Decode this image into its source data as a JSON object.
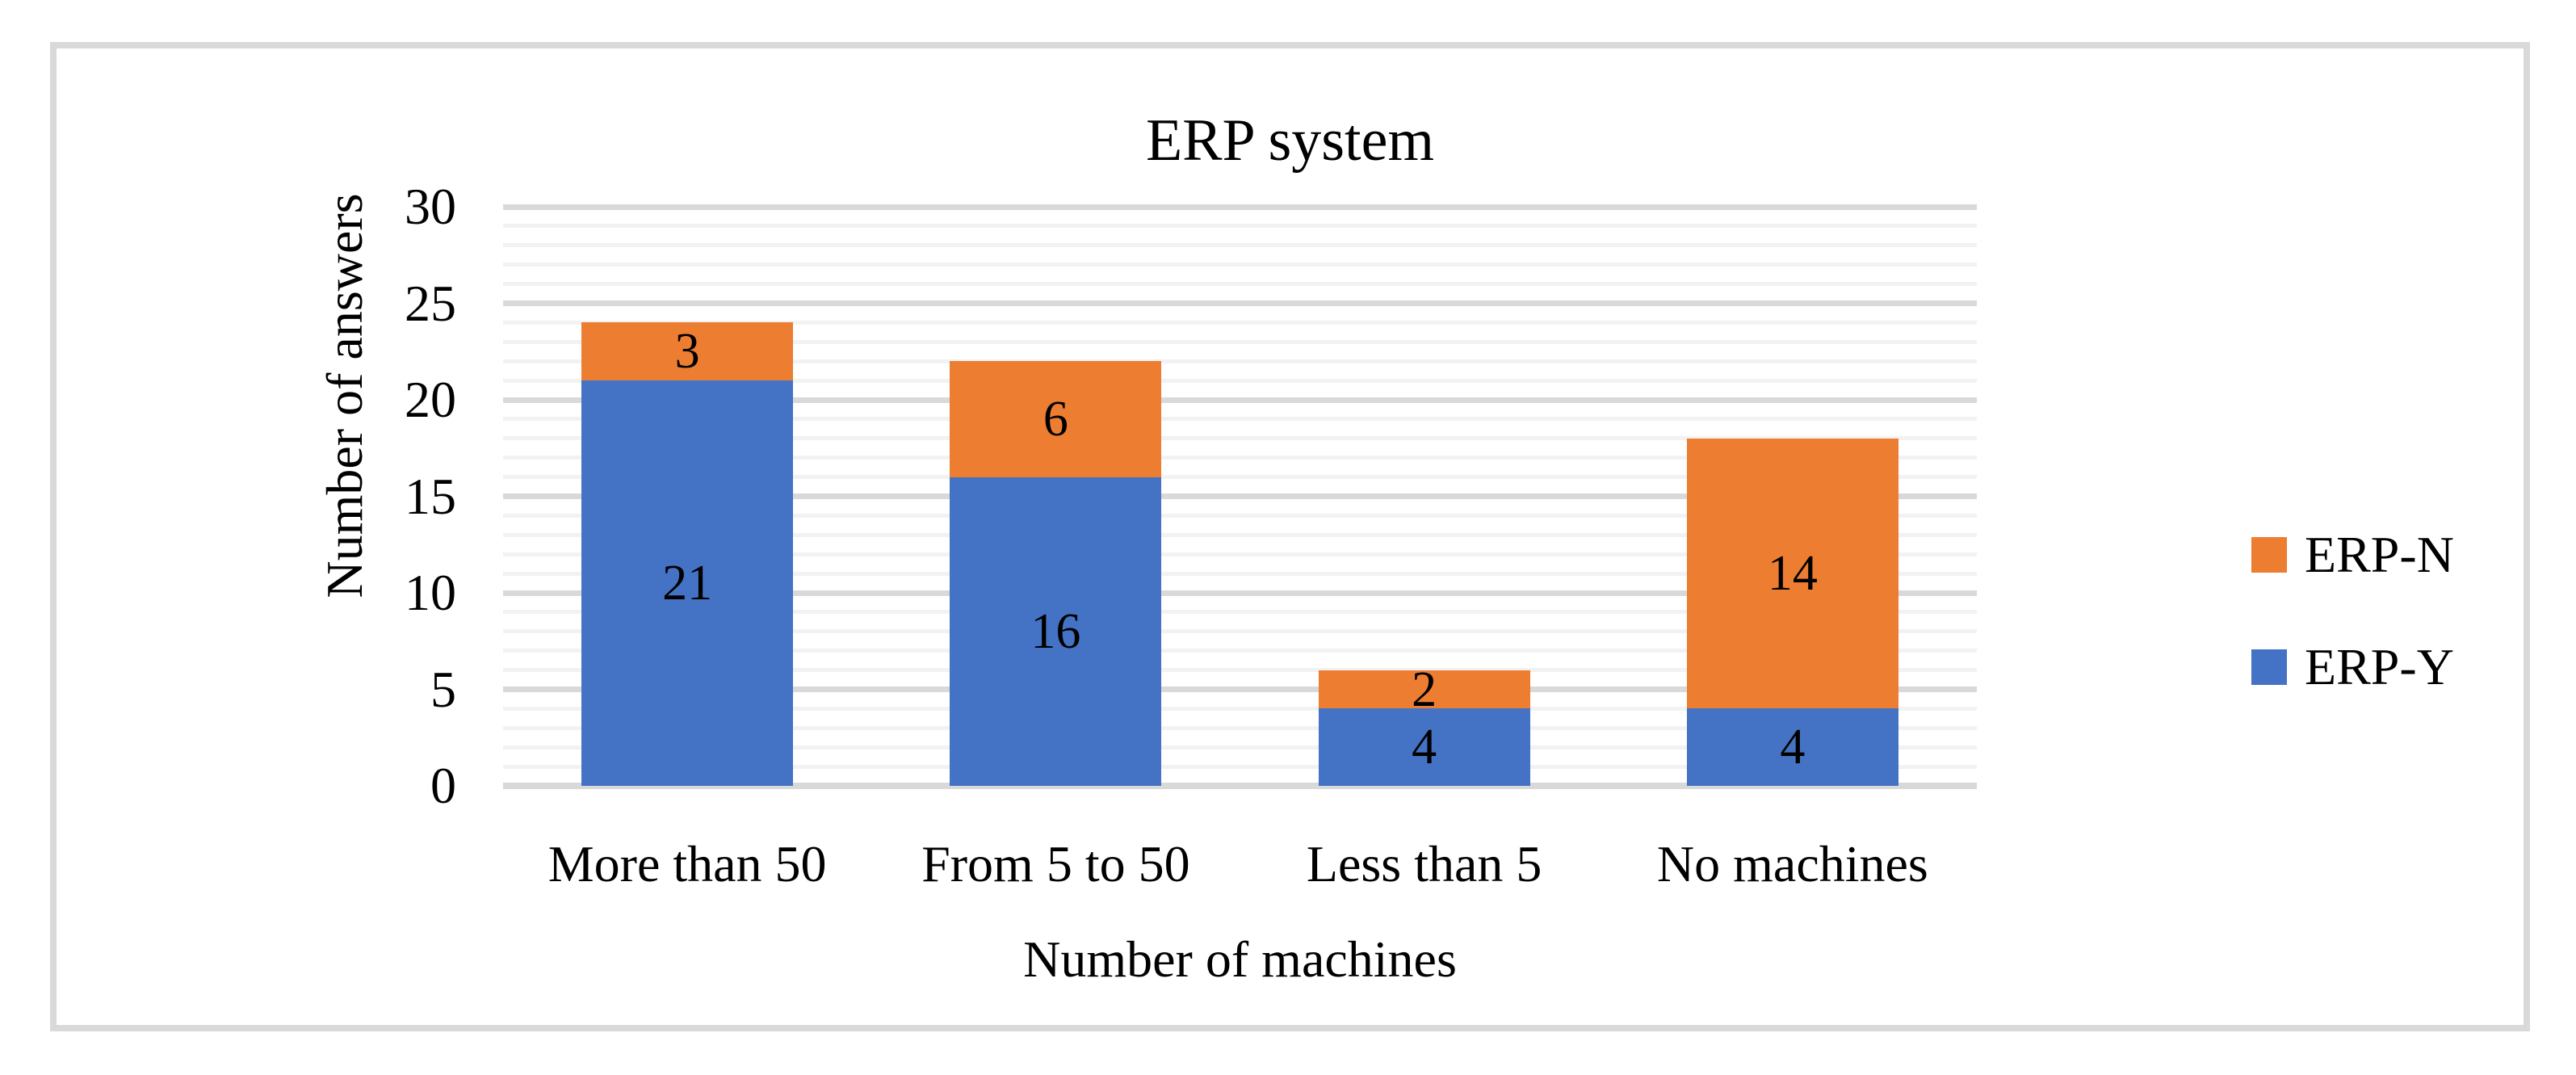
{
  "chart_data": {
    "type": "bar",
    "stacked": true,
    "title": "ERP system",
    "xlabel": "Number of machines",
    "ylabel": "Number of answers",
    "categories": [
      "More than 50",
      "From 5 to 50",
      "Less than 5",
      "No machines"
    ],
    "series": [
      {
        "name": "ERP-Y",
        "color": "#4472C4",
        "values": [
          21,
          16,
          4,
          4
        ]
      },
      {
        "name": "ERP-N",
        "color": "#ED7D31",
        "values": [
          3,
          6,
          2,
          14
        ]
      }
    ],
    "totals": [
      24,
      22,
      6,
      18
    ],
    "ylim": [
      0,
      30
    ],
    "y_major_step": 5,
    "y_minor_step": 1,
    "y_tick_labels": [
      "0",
      "5",
      "10",
      "15",
      "20",
      "25",
      "30"
    ],
    "grid": {
      "minor_color": "#F2F2F2",
      "major_color": "#D9D9D9"
    },
    "frame_border_color": "#D9D9D9",
    "legend_position": "right",
    "legend_order": [
      "ERP-N",
      "ERP-Y"
    ]
  }
}
